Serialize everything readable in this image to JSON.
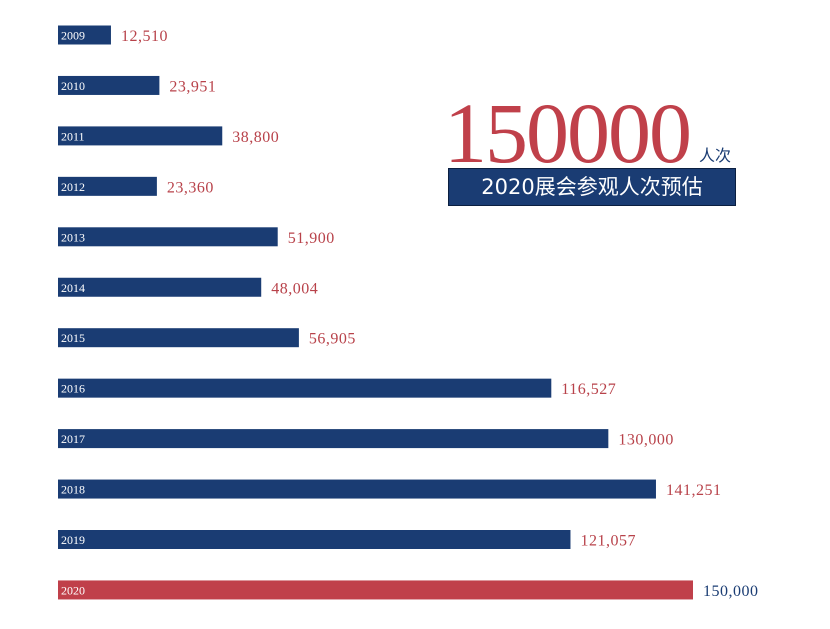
{
  "chart_data": {
    "type": "bar",
    "orientation": "horizontal",
    "categories": [
      "2009",
      "2010",
      "2011",
      "2012",
      "2013",
      "2014",
      "2015",
      "2016",
      "2017",
      "2018",
      "2019",
      "2020"
    ],
    "values": [
      12510,
      23951,
      38800,
      23360,
      51900,
      48004,
      56905,
      116527,
      130000,
      141251,
      121057,
      150000
    ],
    "value_labels": [
      "12,510",
      "23,951",
      "38,800",
      "23,360",
      "51,900",
      "48,004",
      "56,905",
      "116,527",
      "130,000",
      "141,251",
      "121,057",
      "150,000"
    ],
    "highlight_category": "2020",
    "colors": {
      "bar": "#1a3c73",
      "highlight_bar": "#c0404a",
      "value_text": "#b8424a",
      "highlight_value_text": "#1a3c73"
    },
    "xlim": [
      0,
      150000
    ],
    "grid": false,
    "legend": "none"
  },
  "headline": {
    "number": "150000",
    "unit": "人次",
    "caption": "2020展会参观人次预估"
  }
}
